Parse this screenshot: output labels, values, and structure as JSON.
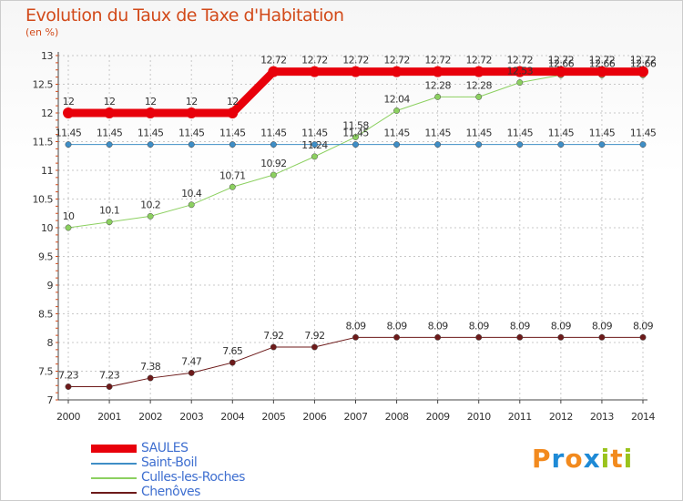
{
  "title": "Evolution du Taux de Taxe d'Habitation",
  "subtitle": "(en %)",
  "logo": {
    "letters": [
      "P",
      "r",
      "o",
      "x",
      "i",
      "t",
      "i"
    ],
    "colors": [
      "#f28a1e",
      "#1e8ad6",
      "#f28a1e",
      "#1e8ad6",
      "#9ac31c",
      "#f28a1e",
      "#9ac31c"
    ]
  },
  "chart_data": {
    "type": "line",
    "title": "Evolution du Taux de Taxe d'Habitation",
    "ylabel": "(en %)",
    "xlabel": "",
    "ylim": [
      7,
      13
    ],
    "yticks": [
      "7",
      "7.5",
      "8",
      "8.5",
      "9",
      "9.5",
      "10",
      "10.5",
      "11",
      "11.5",
      "12",
      "12.5",
      "13"
    ],
    "categories": [
      "2000",
      "2001",
      "2002",
      "2003",
      "2004",
      "2005",
      "2006",
      "2007",
      "2008",
      "2009",
      "2010",
      "2011",
      "2012",
      "2013",
      "2014"
    ],
    "legend_position": "bottom-left",
    "series": [
      {
        "name": "SAULES",
        "color": "#e8000b",
        "width": 9,
        "values": [
          12,
          12,
          12,
          12,
          12,
          12.72,
          12.72,
          12.72,
          12.72,
          12.72,
          12.72,
          12.72,
          12.72,
          12.72,
          12.72
        ],
        "labels": [
          "12",
          "12",
          "12",
          "12",
          "12",
          "12.72",
          "12.72",
          "12.72",
          "12.72",
          "12.72",
          "12.72",
          "12.72",
          "12.72",
          "12.72",
          "12.72"
        ]
      },
      {
        "name": "Saint-Boil",
        "color": "#3f8ec6",
        "width": 1,
        "values": [
          11.45,
          11.45,
          11.45,
          11.45,
          11.45,
          11.45,
          11.45,
          11.45,
          11.45,
          11.45,
          11.45,
          11.45,
          11.45,
          11.45,
          11.45
        ],
        "labels": [
          "11.45",
          "11.45",
          "11.45",
          "11.45",
          "11.45",
          "11.45",
          "11.45",
          "11.45",
          "11.45",
          "11.45",
          "11.45",
          "11.45",
          "11.45",
          "11.45",
          "11.45"
        ]
      },
      {
        "name": "Culles-les-Roches",
        "color": "#8cd060",
        "width": 1,
        "values": [
          10,
          10.1,
          10.2,
          10.4,
          10.71,
          10.92,
          11.24,
          11.58,
          12.04,
          12.28,
          12.28,
          12.53,
          12.66,
          12.66,
          12.66
        ],
        "labels": [
          "10",
          "10.1",
          "10.2",
          "10.4",
          "10.71",
          "10.92",
          "11.24",
          "11.58",
          "12.04",
          "12.28",
          "12.28",
          "12.53",
          "12.66",
          "12.66",
          "12.66"
        ]
      },
      {
        "name": "Chenôves",
        "color": "#6d1a1a",
        "width": 1,
        "values": [
          7.23,
          7.23,
          7.38,
          7.47,
          7.65,
          7.92,
          7.92,
          8.09,
          8.09,
          8.09,
          8.09,
          8.09,
          8.09,
          8.09,
          8.09
        ],
        "labels": [
          "7.23",
          "7.23",
          "7.38",
          "7.47",
          "7.65",
          "7.92",
          "7.92",
          "8.09",
          "8.09",
          "8.09",
          "8.09",
          "8.09",
          "8.09",
          "8.09",
          "8.09"
        ]
      }
    ]
  }
}
